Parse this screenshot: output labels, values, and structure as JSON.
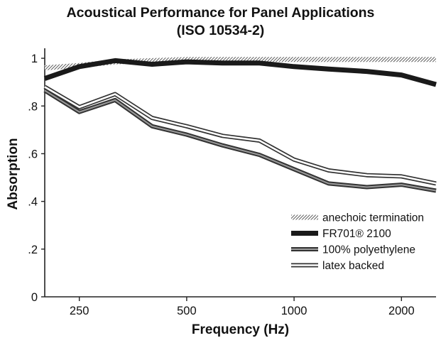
{
  "chart_data": {
    "type": "line",
    "title": "Acoustical Performance for Panel Applications",
    "subtitle": "(ISO 10534-2)",
    "xlabel": "Frequency (Hz)",
    "ylabel": "Absorption",
    "x_scale": "log",
    "xlim": [
      200,
      2500
    ],
    "ylim": [
      0,
      1.03
    ],
    "x_ticks": [
      250,
      500,
      1000,
      2000
    ],
    "x_tick_labels": [
      "250",
      "500",
      "1000",
      "2000"
    ],
    "y_ticks": [
      0,
      0.2,
      0.4,
      0.6,
      0.8,
      1
    ],
    "y_tick_labels": [
      "0",
      ".2",
      ".4",
      ".6",
      ".8",
      "1"
    ],
    "grid": false,
    "legend_position": "bottom-right",
    "x": [
      200,
      250,
      315,
      400,
      500,
      630,
      800,
      1000,
      1250,
      1600,
      2000,
      2500
    ],
    "series": [
      {
        "name": "anechoic termination",
        "style": "hatched",
        "color": "#555555",
        "values": [
          0.96,
          0.97,
          0.985,
          0.99,
          0.995,
          0.995,
          0.995,
          0.995,
          0.995,
          0.995,
          0.995,
          0.995
        ]
      },
      {
        "name": "FR701® 2100",
        "style": "solid-thick",
        "color": "#1a1a1a",
        "values": [
          0.915,
          0.965,
          0.99,
          0.975,
          0.985,
          0.98,
          0.98,
          0.965,
          0.955,
          0.945,
          0.93,
          0.89
        ]
      },
      {
        "name": "100% polyethylene",
        "style": "double-dark",
        "color": "#333333",
        "values": [
          0.865,
          0.775,
          0.825,
          0.715,
          0.68,
          0.635,
          0.595,
          0.535,
          0.475,
          0.46,
          0.47,
          0.445
        ]
      },
      {
        "name": "latex backed",
        "style": "double",
        "color": "#333333",
        "values": [
          0.88,
          0.795,
          0.85,
          0.75,
          0.715,
          0.675,
          0.655,
          0.575,
          0.53,
          0.51,
          0.505,
          0.475
        ]
      }
    ]
  }
}
